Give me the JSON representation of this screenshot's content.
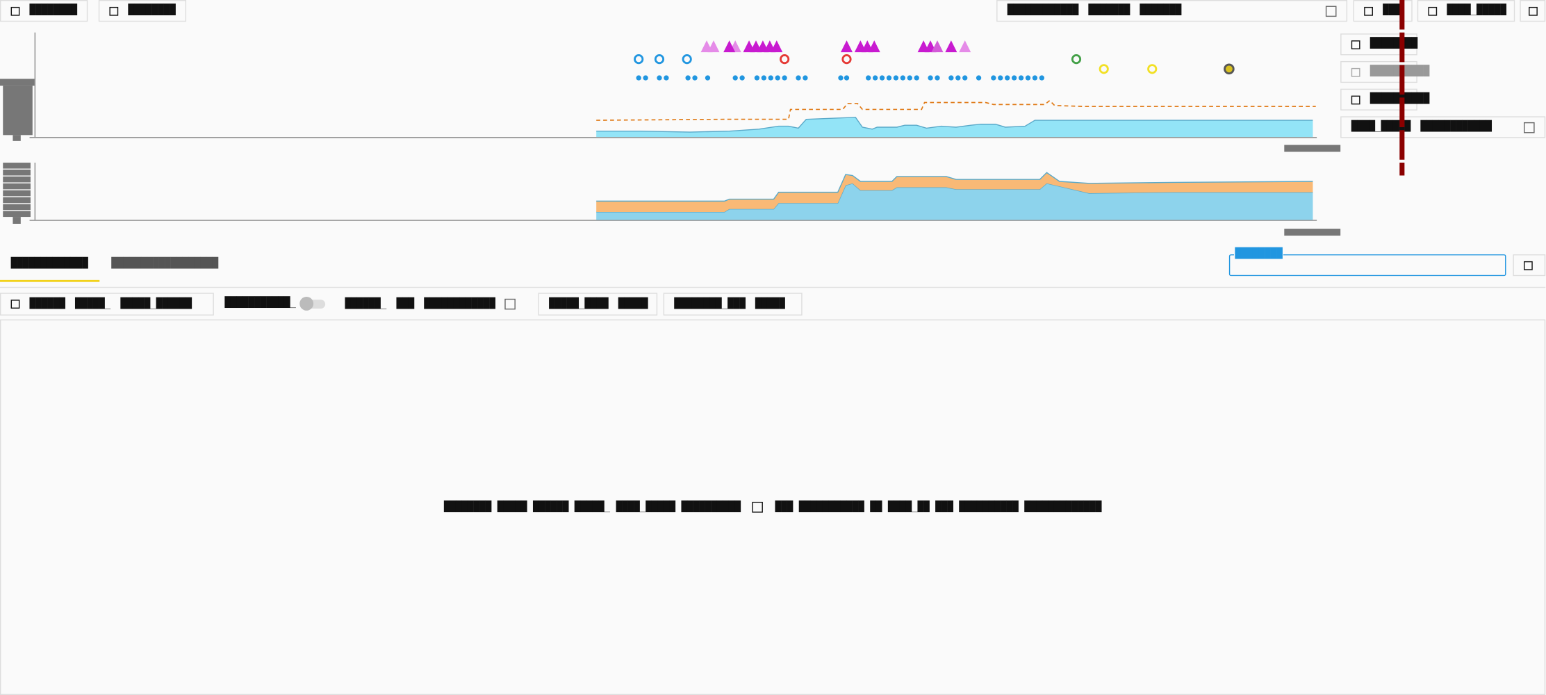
{
  "top_bar": {
    "left_buttons": [
      "████████",
      "████████"
    ],
    "range_box": [
      "████████████",
      "███████",
      "███████"
    ],
    "right_buttons": [
      "███",
      "████_█████"
    ]
  },
  "legend": [
    {
      "label": "████████",
      "enabled": true
    },
    {
      "label": "██████████",
      "enabled": false
    },
    {
      "label": "██████████",
      "enabled": true
    }
  ],
  "legend_group": [
    "████_█████",
    "████████████"
  ],
  "chart_data": [
    {
      "type": "area",
      "xlim": [
        0,
        1300
      ],
      "ylim": [
        0,
        104
      ],
      "series": [
        {
          "color": "#93e4f7",
          "x": [
            570,
            615,
            665,
            705,
            735,
            755,
            765,
            775,
            783,
            833,
            840,
            850,
            855,
            875,
            883,
            895,
            905,
            920,
            935,
            950,
            960,
            975,
            985,
            1005,
            1015,
            1297
          ],
          "values": [
            6,
            6,
            5,
            6,
            8,
            11,
            11,
            9,
            18,
            20,
            10,
            8,
            10,
            10,
            12,
            12,
            9,
            11,
            10,
            12,
            13,
            13,
            10,
            11,
            17,
            17
          ]
        },
        {
          "color": "#e07b18",
          "style": "dashed",
          "x": [
            570,
            700,
            765,
            767,
            785,
            820,
            825,
            835,
            840,
            900,
            903,
            965,
            973,
            1025,
            1030,
            1035,
            1065,
            1300
          ],
          "values": [
            17,
            18,
            18,
            28,
            28,
            28,
            34,
            34,
            28,
            28,
            35,
            35,
            33,
            33,
            37,
            32,
            31,
            31
          ]
        }
      ],
      "events": [
        {
          "shape": "dot",
          "color": "#2196e0",
          "x": [
            613,
            620,
            634,
            641,
            663,
            670,
            683,
            711,
            718,
            733,
            740,
            747,
            754,
            761,
            775,
            782,
            818,
            824,
            846,
            853,
            860,
            867,
            874,
            881,
            888,
            895,
            909,
            916,
            930,
            937,
            944,
            958,
            973,
            980,
            987,
            994,
            1001,
            1008,
            1015,
            1022
          ]
        },
        {
          "shape": "ring",
          "color": "#2196e0",
          "x": [
            613,
            634,
            662
          ]
        },
        {
          "shape": "ring",
          "color": "#e53935",
          "x": [
            761,
            824
          ]
        },
        {
          "shape": "ring",
          "color": "#43a047",
          "x": [
            1057
          ]
        },
        {
          "shape": "ring",
          "color": "#f2e024",
          "x": [
            1085,
            1134
          ]
        },
        {
          "shape": "disc",
          "color": "#8a8a3a",
          "x": [
            1212
          ]
        },
        {
          "shape": "triangle",
          "color": "#e58be8",
          "x": [
            682,
            689,
            711,
            944
          ]
        },
        {
          "shape": "triangle",
          "color": "#c81ad0",
          "x": [
            705,
            725,
            732,
            739,
            746,
            753,
            824,
            838,
            845,
            852,
            902,
            909,
            930
          ]
        },
        {
          "shape": "triangle",
          "color": "#d35ad8",
          "x": [
            916
          ]
        }
      ]
    },
    {
      "type": "area",
      "stacked": true,
      "xlim": [
        0,
        1300
      ],
      "ylim": [
        0,
        58
      ],
      "x": [
        570,
        700,
        705,
        750,
        755,
        815,
        823,
        830,
        838,
        870,
        875,
        925,
        935,
        1020,
        1027,
        1040,
        1070,
        1155,
        1297
      ],
      "series": [
        {
          "color": "#8dd3ec",
          "values": [
            8,
            8,
            11,
            11,
            17,
            17,
            35,
            37,
            30,
            30,
            33,
            33,
            31,
            31,
            37,
            34,
            27,
            28,
            28
          ]
        },
        {
          "color": "#f9b976",
          "values": [
            11,
            11,
            10,
            10,
            11,
            11,
            11,
            8,
            9,
            9,
            11,
            11,
            10,
            10,
            11,
            5,
            10,
            10,
            11
          ]
        }
      ]
    }
  ],
  "tabs": [
    "█████████████",
    "██████████████████"
  ],
  "search_label": "████████",
  "controls": {
    "group1": [
      "██████",
      "█████_",
      "█████_██████"
    ],
    "toggle_label": "███████████_",
    "filter": [
      "██████_",
      "███",
      "████████████"
    ],
    "button2": [
      "█████_████",
      "█████"
    ],
    "button3": [
      "████████_███",
      "█████"
    ]
  },
  "empty_message": {
    "before": "████████ █████ ██████ █████_ ████_█████ ██████████",
    "after": "███ ███████████ ██ ████_██ ███ ██████████ █████████████"
  }
}
